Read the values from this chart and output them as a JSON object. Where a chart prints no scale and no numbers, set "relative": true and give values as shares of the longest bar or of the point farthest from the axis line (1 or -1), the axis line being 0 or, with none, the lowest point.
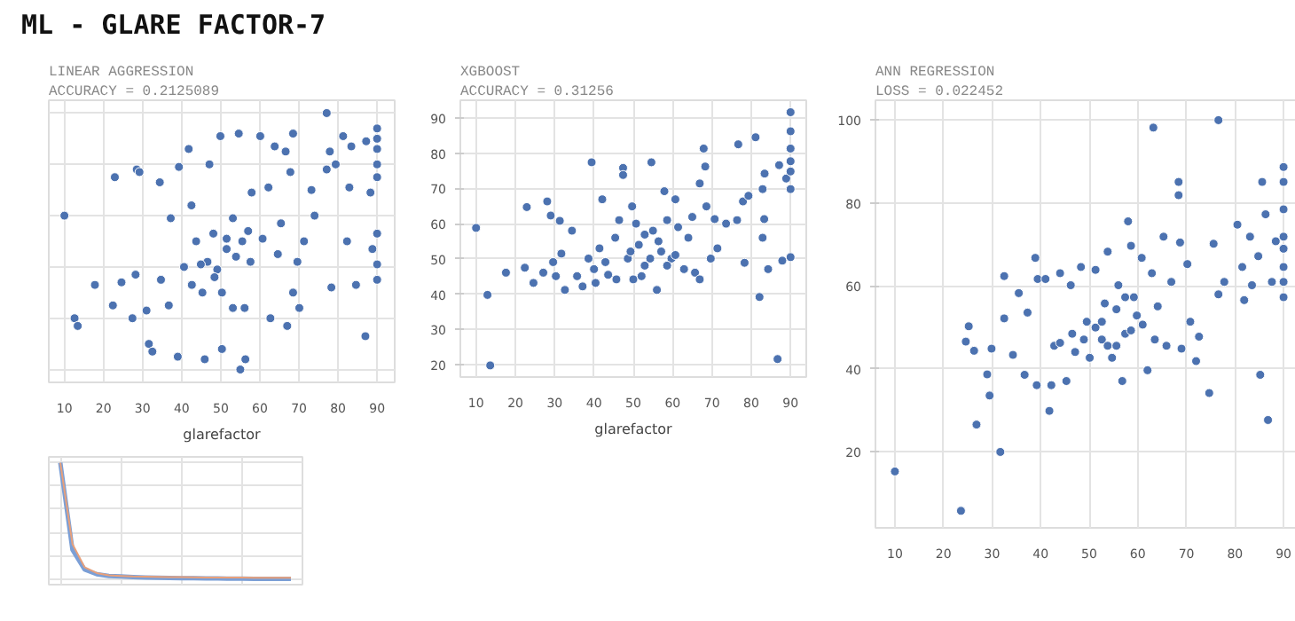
{
  "chart_data": [
    {
      "type": "other",
      "title": "ML - GLARE FACTOR-7"
    },
    {
      "type": "scatter",
      "title": "LINEAR AGGRESSION",
      "subtitle": "ACCURACY = 0.2125089",
      "xlabel": "glarefactor",
      "relative": true,
      "tick_labels": "x",
      "grid": true,
      "marker": "circle",
      "xlim": [
        6,
        94.5
      ],
      "xticks": [
        10,
        20,
        30,
        40,
        50,
        60,
        70,
        80,
        90
      ],
      "series": [
        {
          "color": "#4c72b0",
          "x": [
            10,
            12.6,
            13.4,
            17.8,
            22.4,
            22.9,
            24.6,
            27.4,
            28.2,
            28.5,
            29.2,
            31,
            31.6,
            32.5,
            34.4,
            34.7,
            36.7,
            37.2,
            39,
            39.3,
            40.6,
            41.8,
            42.5,
            43.7,
            45.3,
            45.9,
            47.1,
            48.1,
            49.1,
            49.9,
            50.3,
            51.5,
            53.1,
            54.6,
            55,
            56.1,
            56.3,
            57.6,
            57.9,
            60.1,
            60.7,
            62.2,
            62.7,
            63.8,
            64.6,
            65.4,
            66.6,
            67,
            67.8,
            68.5,
            68.5,
            69.6,
            70.1,
            71.3,
            73.2,
            74,
            77.1,
            77.1,
            77.9,
            78.3,
            79.4,
            81.3,
            82.3,
            82.9,
            83.4,
            84.6,
            87,
            87.2,
            88.3,
            88.8,
            90,
            90,
            90,
            90,
            90,
            90,
            90,
            90,
            46.6,
            48.4,
            51.5,
            53.9,
            55.5,
            57,
            50.3,
            53.1,
            42.6,
            44.9
          ],
          "values": [
            0.6,
            0.2,
            0.17,
            0.33,
            0.25,
            0.75,
            0.34,
            0.2,
            0.37,
            0.78,
            0.77,
            0.23,
            0.1,
            0.07,
            0.73,
            0.35,
            0.25,
            0.59,
            0.05,
            0.79,
            0.4,
            0.86,
            0.64,
            0.5,
            0.3,
            0.04,
            0.8,
            0.53,
            0.39,
            0.91,
            0.08,
            0.47,
            0.59,
            0.92,
            0,
            0.24,
            0.04,
            0.42,
            0.69,
            0.91,
            0.51,
            0.71,
            0.2,
            0.87,
            0.45,
            0.57,
            0.85,
            0.17,
            0.77,
            0.92,
            0.3,
            0.42,
            0.24,
            0.5,
            0.7,
            0.6,
            1,
            0.78,
            0.85,
            0.32,
            0.8,
            0.91,
            0.5,
            0.71,
            0.87,
            0.33,
            0.13,
            0.89,
            0.69,
            0.47,
            0.94,
            0.9,
            0.86,
            0.8,
            0.75,
            0.53,
            0.41,
            0.35,
            0.42,
            0.36,
            0.51,
            0.44,
            0.5,
            0.54,
            0.3,
            0.24,
            0.33,
            0.41
          ]
        }
      ]
    },
    {
      "type": "scatter",
      "title": "XGBOOST",
      "subtitle": "ACCURACY = 0.31256",
      "xlabel": "glarefactor",
      "grid": true,
      "marker": "circle",
      "xlim": [
        6,
        94
      ],
      "xticks": [
        10,
        20,
        30,
        40,
        50,
        60,
        70,
        80,
        90
      ],
      "ylim": [
        16.5,
        95
      ],
      "yticks": [
        20,
        30,
        40,
        50,
        60,
        70,
        80,
        90
      ],
      "series": [
        {
          "color": "#4c72b0",
          "x": [
            10,
            12.9,
            13.6,
            17.6,
            22.4,
            22.9,
            24.6,
            27.1,
            28.1,
            29,
            29.6,
            30.3,
            31.3,
            31.7,
            32.6,
            34.4,
            35.7,
            38.6,
            39.4,
            40.4,
            41.4,
            42.1,
            43.6,
            45.4,
            46.4,
            47.4,
            47.4,
            48.6,
            49.7,
            50,
            51.4,
            52.9,
            54.6,
            55,
            56,
            57.1,
            57.9,
            58.6,
            59.7,
            60.7,
            61.4,
            62.9,
            64,
            65,
            65.7,
            66.9,
            66.9,
            67.9,
            68.3,
            68.6,
            69.7,
            70.7,
            71.4,
            73.6,
            76.4,
            76.7,
            77.9,
            78.3,
            79.3,
            81.1,
            82.1,
            82.9,
            82.9,
            83.3,
            83.4,
            84.3,
            86.7,
            87.1,
            87.9,
            88.9,
            90,
            90,
            90,
            90,
            90,
            90,
            90,
            42.9,
            45.7,
            49.3,
            52.1,
            54.3,
            56.4,
            58.6,
            60.7,
            37.1,
            40,
            50.7,
            52.9
          ],
          "values": [
            58.8,
            39.8,
            19.8,
            46.1,
            47.5,
            64.7,
            43.2,
            46.1,
            66.3,
            62.3,
            49.1,
            45.1,
            60.8,
            51.5,
            41.2,
            58,
            45.1,
            50.1,
            77.4,
            43.2,
            53,
            66.9,
            45.5,
            56,
            61,
            75.8,
            73.8,
            50.1,
            64.9,
            44.2,
            54,
            48.1,
            77.4,
            58,
            41.2,
            52.1,
            69.2,
            61,
            50.1,
            66.9,
            59,
            47.1,
            56,
            61.9,
            46.1,
            44.2,
            71.4,
            81.3,
            76.2,
            64.9,
            50.1,
            61.3,
            53,
            60,
            61,
            82.5,
            66.3,
            48.9,
            67.9,
            84.5,
            39.2,
            69.8,
            56,
            61.3,
            74.2,
            47.1,
            21.6,
            76.6,
            49.5,
            72.8,
            91.6,
            86.2,
            81.3,
            77.7,
            74.8,
            69.8,
            50.5,
            49.1,
            44.2,
            52.1,
            45.1,
            50.1,
            55,
            48.1,
            51.1,
            42.2,
            47.1,
            60,
            56.9
          ]
        }
      ]
    },
    {
      "type": "scatter",
      "title": "ANN REGRESSION",
      "subtitle": "LOSS = 0.022452",
      "grid": true,
      "marker": "circle",
      "xlim": [
        6,
        94
      ],
      "xticks": [
        10,
        20,
        30,
        40,
        50,
        60,
        70,
        80,
        90
      ],
      "ylim": [
        1.7,
        104.8
      ],
      "yticks": [
        20,
        40,
        60,
        80,
        100
      ],
      "series": [
        {
          "color": "#4c72b0",
          "x": [
            10,
            23.6,
            26.8,
            29.5,
            31.7,
            24.6,
            25.2,
            26.3,
            29,
            29.9,
            32.5,
            32.5,
            34.3,
            35.5,
            36.7,
            37.3,
            38.9,
            39.2,
            39.4,
            41,
            41.8,
            42.2,
            42.8,
            44,
            45.3,
            46.2,
            47.1,
            48.3,
            49.5,
            50.1,
            51.3,
            52.6,
            53.2,
            53.8,
            54.7,
            56,
            56.8,
            57.4,
            58,
            58.6,
            59.2,
            59.8,
            60.8,
            62,
            62.9,
            63.2,
            64.1,
            65.3,
            65.9,
            66.9,
            68.4,
            68.4,
            68.7,
            69,
            70.2,
            70.8,
            72,
            72.6,
            74.7,
            75.6,
            76.6,
            76.6,
            77.8,
            80.5,
            81.5,
            81.9,
            83.1,
            83.5,
            84.8,
            85.2,
            85.6,
            86.3,
            86.8,
            87.6,
            88.4,
            90,
            90,
            90,
            90,
            90,
            90,
            90,
            90,
            48.9,
            51.3,
            53.8,
            55.6,
            57.4,
            58.6,
            61,
            63.5,
            46.5,
            44,
            52.6,
            55.6
          ],
          "values": [
            15.3,
            5.8,
            26.6,
            33.6,
            20,
            46.6,
            50.3,
            44.4,
            38.7,
            44.9,
            62.4,
            52.2,
            43.4,
            58.3,
            38.6,
            53.6,
            66.8,
            36.1,
            61.7,
            61.7,
            29.9,
            36.1,
            45.6,
            63.1,
            37.1,
            60.2,
            44.1,
            64.6,
            51.4,
            42.7,
            63.9,
            47.1,
            55.8,
            68.3,
            42.7,
            60.2,
            37.1,
            48.5,
            75.6,
            69.7,
            57.3,
            52.9,
            66.8,
            39.7,
            63.1,
            98.2,
            55.1,
            71.9,
            45.6,
            61,
            81.9,
            85.1,
            70.5,
            44.9,
            65.3,
            51.4,
            41.9,
            47.8,
            34.2,
            70.2,
            58,
            100,
            61,
            74.8,
            64.6,
            56.6,
            71.9,
            60.2,
            67.2,
            38.6,
            85.1,
            77.3,
            27.7,
            61,
            70.8,
            88.7,
            85.1,
            78.5,
            71.9,
            69,
            64.6,
            61,
            57.3,
            47.1,
            50,
            45.6,
            54.4,
            57.3,
            49.3,
            50.7,
            47.1,
            48.5,
            46.3,
            51.4,
            45.6
          ]
        }
      ]
    },
    {
      "type": "line",
      "relative": true,
      "tick_labels": false,
      "grid": true,
      "categories": [
        null,
        null,
        null,
        null,
        null,
        null,
        null,
        null,
        null,
        null,
        null,
        null,
        null,
        null,
        null,
        null,
        null,
        null,
        null,
        null
      ],
      "series": [
        {
          "color": "#7b9fd6",
          "values": [
            1,
            0.25,
            0.08,
            0.04,
            0.025,
            0.02,
            0.015,
            0.012,
            0.01,
            0.008,
            0.006,
            0.005,
            0.004,
            0.003,
            0.002,
            0.001,
            0,
            0,
            0,
            0
          ]
        },
        {
          "color": "#e8a07a",
          "values": [
            1,
            0.3,
            0.1,
            0.05,
            0.03,
            0.025,
            0.02,
            0.018,
            0.016,
            0.015,
            0.014,
            0.013,
            0.012,
            0.012,
            0.011,
            0.011,
            0.01,
            0.01,
            0.01,
            0.01
          ]
        }
      ]
    }
  ]
}
